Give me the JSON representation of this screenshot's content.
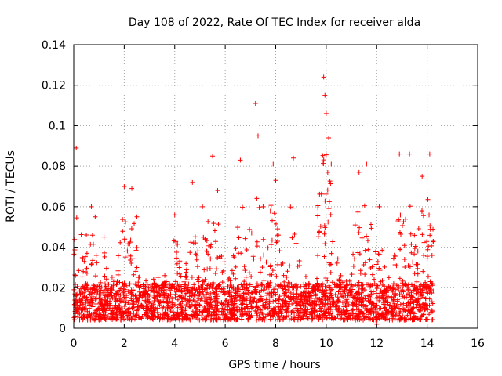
{
  "chart_data": {
    "type": "scatter",
    "title": "Day 108 of 2022, Rate Of TEC Index for receiver alda",
    "xlabel": "GPS time / hours",
    "ylabel": "ROTI / TECUs",
    "xlim": [
      0,
      16
    ],
    "ylim": [
      0,
      0.14
    ],
    "x_ticks": [
      0,
      2,
      4,
      6,
      8,
      10,
      12,
      14,
      16
    ],
    "x_tick_labels": [
      "0",
      "2",
      "4",
      "6",
      "8",
      "10",
      "12",
      "14",
      "16"
    ],
    "y_ticks": [
      0,
      0.02,
      0.04,
      0.06,
      0.08,
      0.1,
      0.12,
      0.14
    ],
    "y_tick_labels": [
      "0",
      "0.02",
      "0.04",
      "0.06",
      "0.08",
      "0.1",
      "0.12",
      "0.14"
    ],
    "grid": true,
    "marker": "+",
    "color": "#ff0000",
    "series": [
      {
        "name": "ROTI",
        "x_range": [
          0,
          14.25
        ],
        "baseline": [
          0.005,
          0.02
        ],
        "notable_points": [
          {
            "x": 0.1,
            "y": 0.089
          },
          {
            "x": 0.5,
            "y": 0.046
          },
          {
            "x": 0.7,
            "y": 0.06
          },
          {
            "x": 0.85,
            "y": 0.055
          },
          {
            "x": 1.2,
            "y": 0.045
          },
          {
            "x": 2.0,
            "y": 0.07
          },
          {
            "x": 2.3,
            "y": 0.069
          },
          {
            "x": 2.5,
            "y": 0.055
          },
          {
            "x": 4.0,
            "y": 0.056
          },
          {
            "x": 4.7,
            "y": 0.072
          },
          {
            "x": 5.1,
            "y": 0.06
          },
          {
            "x": 5.5,
            "y": 0.085
          },
          {
            "x": 5.7,
            "y": 0.068
          },
          {
            "x": 6.6,
            "y": 0.083
          },
          {
            "x": 7.2,
            "y": 0.111
          },
          {
            "x": 7.3,
            "y": 0.095
          },
          {
            "x": 7.5,
            "y": 0.06
          },
          {
            "x": 7.9,
            "y": 0.081
          },
          {
            "x": 8.0,
            "y": 0.073
          },
          {
            "x": 8.7,
            "y": 0.084
          },
          {
            "x": 9.9,
            "y": 0.124
          },
          {
            "x": 9.95,
            "y": 0.115
          },
          {
            "x": 10.0,
            "y": 0.106
          },
          {
            "x": 10.1,
            "y": 0.094
          },
          {
            "x": 10.2,
            "y": 0.081
          },
          {
            "x": 11.3,
            "y": 0.077
          },
          {
            "x": 11.6,
            "y": 0.081
          },
          {
            "x": 12.1,
            "y": 0.06
          },
          {
            "x": 12.9,
            "y": 0.086
          },
          {
            "x": 13.3,
            "y": 0.086
          },
          {
            "x": 13.8,
            "y": 0.075
          },
          {
            "x": 14.1,
            "y": 0.086
          },
          {
            "x": 12.0,
            "y": 0.002
          }
        ]
      }
    ]
  }
}
